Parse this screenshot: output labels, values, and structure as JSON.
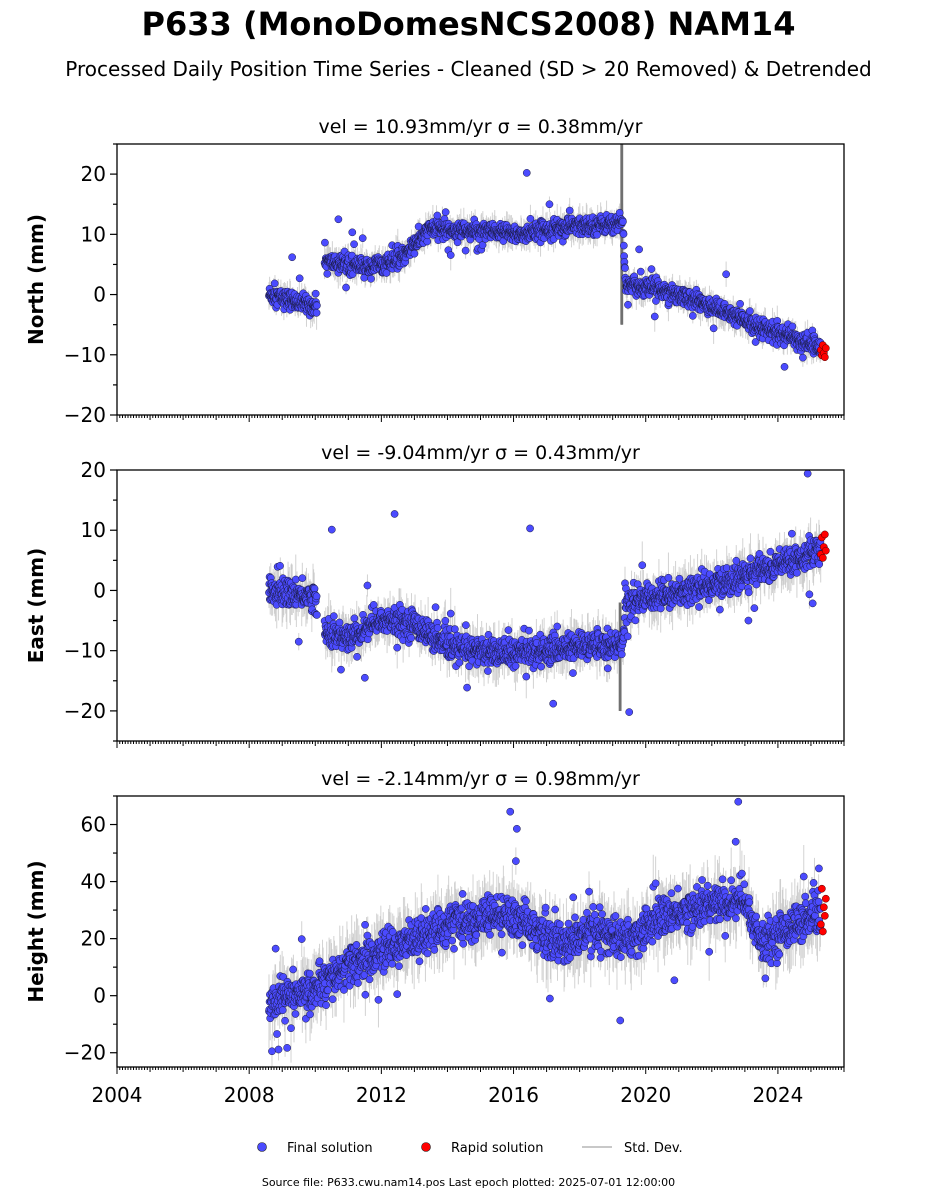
{
  "figure": {
    "title": "P633 (MonoDomesNCS2008) NAM14",
    "subtitle": "Processed Daily Position Time Series - Cleaned (SD > 20 Removed) & Detrended",
    "source_line": "Source file: P633.cwu.nam14.pos  Last epoch plotted: 2025-07-01 12:00:00"
  },
  "legend": {
    "placement": "bottom-center",
    "items": [
      {
        "label": "Final solution",
        "color": "#4b4bff"
      },
      {
        "label": "Rapid solution",
        "color": "#ff0000"
      },
      {
        "label": "Std. Dev.",
        "color": "#c8c8c8"
      }
    ]
  },
  "chart_data": [
    {
      "type": "scatter",
      "component": "north",
      "title": "vel = 10.93mm/yr   σ = 0.38mm/yr",
      "ylabel": "North (mm)",
      "xlim": [
        2004.0,
        2026.0
      ],
      "ylim": [
        -20,
        25
      ],
      "yticks": [
        -20,
        -10,
        0,
        10,
        20
      ],
      "xticks": [
        2004,
        2008,
        2012,
        2016,
        2020,
        2024
      ],
      "show_xtick_labels": false,
      "trend_knots": [
        [
          2008.6,
          0.0
        ],
        [
          2010.0,
          -2.0
        ],
        [
          2010.3,
          5.5
        ],
        [
          2011.5,
          4.5
        ],
        [
          2012.5,
          5.5
        ],
        [
          2013.5,
          11.0
        ],
        [
          2015.0,
          10.5
        ],
        [
          2016.3,
          10.0
        ],
        [
          2017.0,
          11.0
        ],
        [
          2018.5,
          11.5
        ],
        [
          2019.3,
          12.0
        ],
        [
          2019.4,
          1.5
        ],
        [
          2020.5,
          1.0
        ],
        [
          2022.0,
          -2.0
        ],
        [
          2024.0,
          -6.5
        ],
        [
          2025.4,
          -9.0
        ]
      ],
      "noise": 1.3,
      "outliers": [
        [
          2009.3,
          6.2
        ],
        [
          2010.7,
          12.5
        ],
        [
          2016.4,
          20.2
        ],
        [
          2019.8,
          7.5
        ],
        [
          2024.2,
          -12.0
        ]
      ],
      "stddev_spikes": [
        [
          2019.25,
          -5.0,
          25.0
        ]
      ],
      "rapid": [
        [
          2025.3,
          -9.2
        ],
        [
          2025.33,
          -10.1
        ],
        [
          2025.36,
          -8.4
        ],
        [
          2025.39,
          -9.7
        ],
        [
          2025.42,
          -10.4
        ],
        [
          2025.45,
          -8.9
        ]
      ]
    },
    {
      "type": "scatter",
      "component": "east",
      "title": "vel = -9.04mm/yr   σ = 0.43mm/yr",
      "ylabel": "East (mm)",
      "xlim": [
        2004.0,
        2026.0
      ],
      "ylim": [
        -25,
        20
      ],
      "yticks": [
        -20,
        -10,
        0,
        10,
        20
      ],
      "xticks": [
        2004,
        2008,
        2012,
        2016,
        2020,
        2024
      ],
      "show_xtick_labels": false,
      "trend_knots": [
        [
          2008.6,
          0.0
        ],
        [
          2010.0,
          -1.0
        ],
        [
          2010.3,
          -7.0
        ],
        [
          2011.0,
          -8.0
        ],
        [
          2012.0,
          -5.0
        ],
        [
          2013.0,
          -5.5
        ],
        [
          2014.0,
          -9.5
        ],
        [
          2016.0,
          -10.5
        ],
        [
          2017.5,
          -9.5
        ],
        [
          2019.3,
          -9.0
        ],
        [
          2019.4,
          -2.0
        ],
        [
          2020.5,
          -1.0
        ],
        [
          2022.5,
          1.5
        ],
        [
          2023.5,
          3.5
        ],
        [
          2025.4,
          6.5
        ]
      ],
      "noise": 2.0,
      "outliers": [
        [
          2010.5,
          10.1
        ],
        [
          2012.4,
          12.7
        ],
        [
          2016.5,
          10.3
        ],
        [
          2019.5,
          -20.2
        ],
        [
          2017.2,
          -18.8
        ],
        [
          2024.9,
          19.4
        ],
        [
          2011.5,
          -14.5
        ]
      ],
      "stddev_spikes": [
        [
          2019.2,
          -20.0,
          -2.0
        ]
      ],
      "rapid": [
        [
          2025.3,
          6.0
        ],
        [
          2025.33,
          8.8
        ],
        [
          2025.36,
          5.4
        ],
        [
          2025.39,
          7.2
        ],
        [
          2025.42,
          9.3
        ],
        [
          2025.45,
          6.6
        ]
      ]
    },
    {
      "type": "scatter",
      "component": "height",
      "title": "vel = -2.14mm/yr   σ = 0.98mm/yr",
      "ylabel": "Height (mm)",
      "xlim": [
        2004.0,
        2026.0
      ],
      "ylim": [
        -25,
        70
      ],
      "yticks": [
        -20,
        0,
        20,
        40,
        60
      ],
      "xticks": [
        2004,
        2008,
        2012,
        2016,
        2020,
        2024
      ],
      "show_xtick_labels": true,
      "trend_knots": [
        [
          2008.6,
          -2.0
        ],
        [
          2010.0,
          2.0
        ],
        [
          2011.0,
          10.0
        ],
        [
          2012.0,
          15.0
        ],
        [
          2014.0,
          25.0
        ],
        [
          2015.5,
          28.0
        ],
        [
          2016.5,
          25.0
        ],
        [
          2017.3,
          18.0
        ],
        [
          2018.5,
          22.0
        ],
        [
          2019.5,
          20.0
        ],
        [
          2020.5,
          28.0
        ],
        [
          2022.0,
          32.0
        ],
        [
          2023.0,
          33.0
        ],
        [
          2023.5,
          18.0
        ],
        [
          2024.5,
          25.0
        ],
        [
          2025.4,
          28.0
        ]
      ],
      "noise": 6.0,
      "outliers": [
        [
          2022.8,
          68.0
        ],
        [
          2015.9,
          64.5
        ],
        [
          2016.1,
          58.5
        ],
        [
          2008.8,
          16.5
        ],
        [
          2017.1,
          -1.0
        ]
      ],
      "stddev_spikes": [],
      "rapid": [
        [
          2025.3,
          25.0
        ],
        [
          2025.33,
          37.5
        ],
        [
          2025.36,
          22.5
        ],
        [
          2025.39,
          31.0
        ],
        [
          2025.42,
          28.0
        ],
        [
          2025.45,
          34.0
        ]
      ]
    }
  ]
}
